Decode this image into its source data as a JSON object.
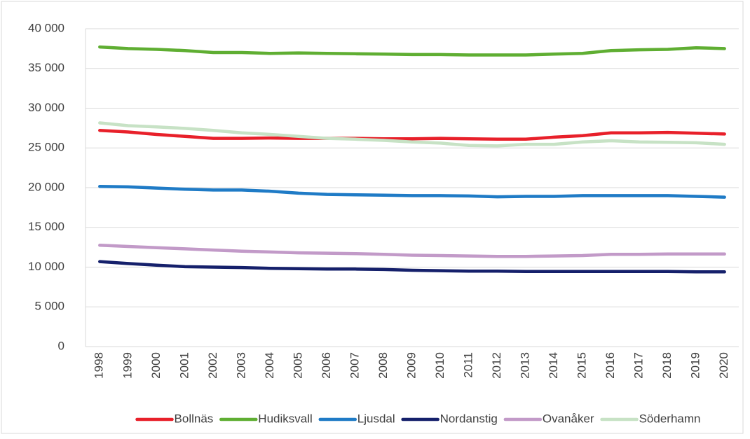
{
  "chart_data": {
    "type": "line",
    "categories": [
      "1998",
      "1999",
      "2000",
      "2001",
      "2002",
      "2003",
      "2004",
      "2005",
      "2006",
      "2007",
      "2008",
      "2009",
      "2010",
      "2011",
      "2012",
      "2013",
      "2014",
      "2015",
      "2016",
      "2017",
      "2018",
      "2019",
      "2020"
    ],
    "series": [
      {
        "name": "Bollnäs",
        "color": "#e8202a",
        "values": [
          27200,
          27000,
          26700,
          26450,
          26200,
          26200,
          26250,
          26200,
          26200,
          26200,
          26150,
          26150,
          26200,
          26150,
          26100,
          26100,
          26350,
          26550,
          26900,
          26900,
          26950,
          26850,
          26750
        ]
      },
      {
        "name": "Hudiksvall",
        "color": "#5fae32",
        "values": [
          37700,
          37500,
          37400,
          37250,
          37000,
          37000,
          36900,
          36950,
          36900,
          36850,
          36800,
          36750,
          36750,
          36700,
          36700,
          36700,
          36800,
          36900,
          37250,
          37350,
          37400,
          37600,
          37500
        ]
      },
      {
        "name": "Ljusdal",
        "color": "#1f7bc6",
        "values": [
          20150,
          20100,
          19950,
          19800,
          19700,
          19700,
          19550,
          19300,
          19150,
          19100,
          19050,
          19000,
          19000,
          18950,
          18850,
          18900,
          18900,
          19000,
          19000,
          19000,
          19000,
          18900,
          18800
        ]
      },
      {
        "name": "Nordanstig",
        "color": "#15206b",
        "values": [
          10700,
          10450,
          10250,
          10050,
          10000,
          9950,
          9850,
          9800,
          9750,
          9750,
          9700,
          9600,
          9550,
          9500,
          9500,
          9450,
          9450,
          9450,
          9450,
          9450,
          9450,
          9400,
          9400
        ]
      },
      {
        "name": "Ovanåker",
        "color": "#c29ac8",
        "values": [
          12750,
          12600,
          12450,
          12300,
          12150,
          12000,
          11900,
          11800,
          11750,
          11700,
          11600,
          11500,
          11450,
          11400,
          11350,
          11350,
          11400,
          11450,
          11600,
          11600,
          11650,
          11650,
          11650
        ]
      },
      {
        "name": "Söderhamn",
        "color": "#c7e2c5",
        "values": [
          28150,
          27800,
          27650,
          27450,
          27200,
          26900,
          26700,
          26450,
          26200,
          26100,
          25950,
          25750,
          25600,
          25300,
          25250,
          25450,
          25450,
          25750,
          25900,
          25750,
          25700,
          25650,
          25450
        ]
      }
    ],
    "ylim": [
      0,
      40000
    ],
    "yticks": [
      0,
      {
        "value": 5000,
        "label": "5 000"
      },
      {
        "value": 10000,
        "label": "10 000"
      },
      {
        "value": 15000,
        "label": "15 000"
      },
      {
        "value": 20000,
        "label": "20 000"
      },
      {
        "value": 25000,
        "label": "25 000"
      },
      {
        "value": 30000,
        "label": "30 000"
      },
      {
        "value": 35000,
        "label": "35 000"
      },
      {
        "value": 40000,
        "label": "40 000"
      }
    ],
    "grid": true,
    "legend": "bottom"
  }
}
